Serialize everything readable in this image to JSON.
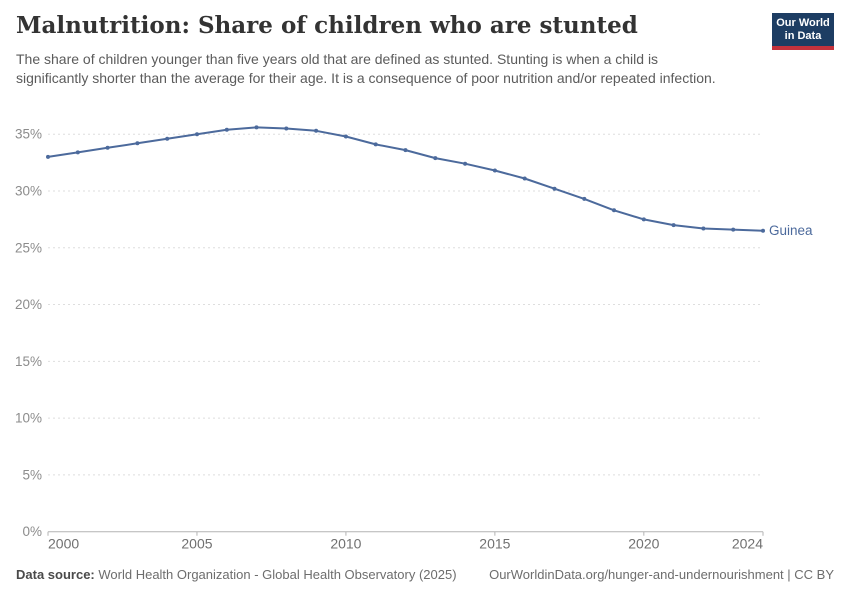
{
  "header": {
    "title": "Malnutrition: Share of children who are stunted",
    "subtitle": "The share of children younger than five years old that are defined as stunted. Stunting is when a child is significantly shorter than the average for their age. It is a consequence of poor nutrition and/or repeated infection."
  },
  "logo": {
    "line1": "Our World",
    "line2": "in Data",
    "bg_color": "#1d3d63",
    "accent_color": "#c4323c"
  },
  "chart_data": {
    "type": "line",
    "title": "Malnutrition: Share of children who are stunted",
    "xlabel": "",
    "ylabel": "",
    "x": [
      2000,
      2001,
      2002,
      2003,
      2004,
      2005,
      2006,
      2007,
      2008,
      2009,
      2010,
      2011,
      2012,
      2013,
      2014,
      2015,
      2016,
      2017,
      2018,
      2019,
      2020,
      2021,
      2022,
      2023,
      2024
    ],
    "series": [
      {
        "name": "Guinea",
        "color": "#4c6a9c",
        "values": [
          33.0,
          33.4,
          33.8,
          34.2,
          34.6,
          35.0,
          35.4,
          35.6,
          35.5,
          35.3,
          34.8,
          34.1,
          33.6,
          32.9,
          32.4,
          31.8,
          31.1,
          30.2,
          29.3,
          28.3,
          27.5,
          27.0,
          26.7,
          26.6,
          26.5
        ]
      }
    ],
    "ylim": [
      0,
      35
    ],
    "xlim": [
      2000,
      2024
    ],
    "yticks": [
      {
        "value": 0,
        "label": "0%"
      },
      {
        "value": 5,
        "label": "5%"
      },
      {
        "value": 10,
        "label": "10%"
      },
      {
        "value": 15,
        "label": "15%"
      },
      {
        "value": 20,
        "label": "20%"
      },
      {
        "value": 25,
        "label": "25%"
      },
      {
        "value": 30,
        "label": "30%"
      },
      {
        "value": 35,
        "label": "35%"
      }
    ],
    "xticks": [
      {
        "value": 2000,
        "label": "2000"
      },
      {
        "value": 2005,
        "label": "2005"
      },
      {
        "value": 2010,
        "label": "2010"
      },
      {
        "value": 2015,
        "label": "2015"
      },
      {
        "value": 2020,
        "label": "2020"
      },
      {
        "value": 2024,
        "label": "2024"
      }
    ],
    "grid": "horizontal-dashed",
    "legend_position": "end-of-line",
    "style": {
      "grid_color": "#dedede",
      "axis_color": "#b3b3b3",
      "ytick_text_color": "#8c8c8c",
      "xtick_text_color": "#707070"
    }
  },
  "footer": {
    "datasource_label": "Data source:",
    "datasource_value": "World Health Organization - Global Health Observatory (2025)",
    "citation": "OurWorldinData.org/hunger-and-undernourishment | CC BY"
  }
}
